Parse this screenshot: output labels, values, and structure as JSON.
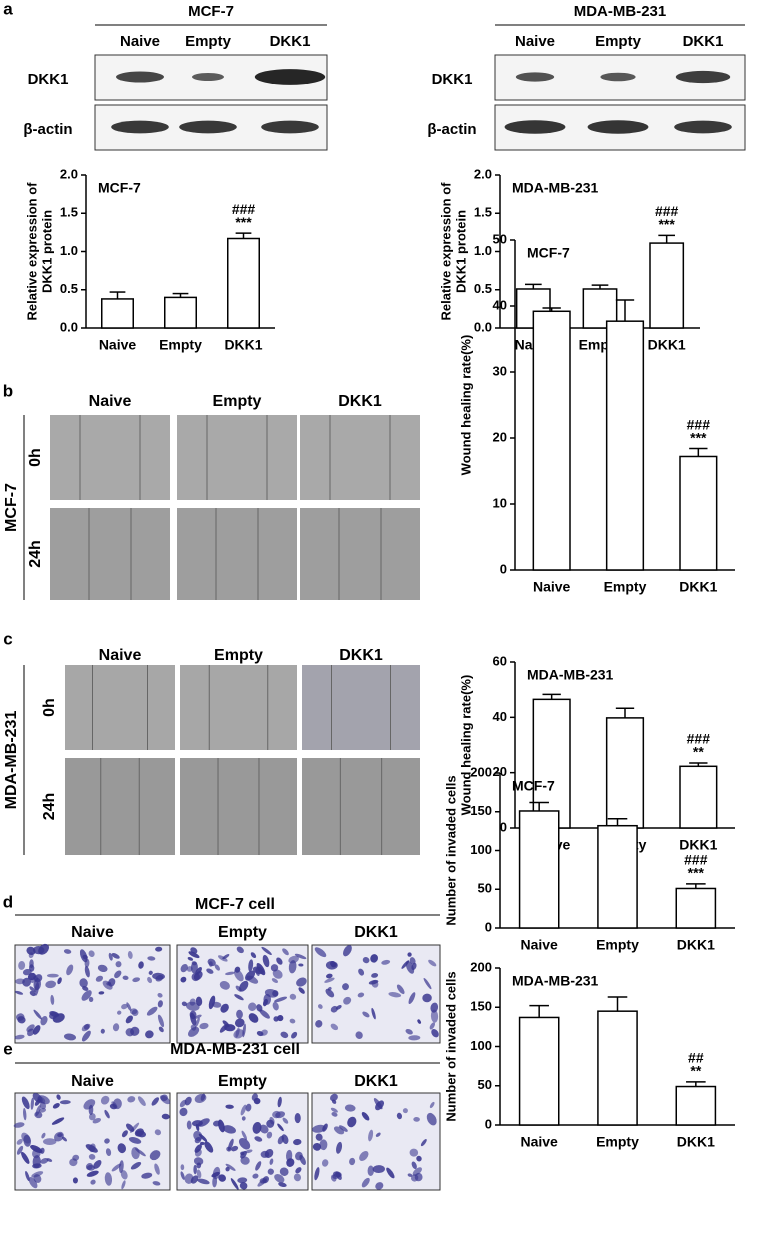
{
  "chart_data": [
    {
      "type": "bar",
      "title": "MCF-7",
      "ylabel": [
        "Relative expression of",
        "DKK1 protein"
      ],
      "categories": [
        "Naive",
        "Empty",
        "DKK1"
      ],
      "values": [
        0.38,
        0.4,
        1.17
      ],
      "errors": [
        0.09,
        0.05,
        0.07
      ],
      "annotations": [
        "###",
        "***"
      ],
      "ylim": [
        0,
        2
      ],
      "yticks": [
        {
          "value": 0,
          "label": "0.0"
        },
        {
          "value": 0.5,
          "label": "0.5"
        },
        {
          "value": 1,
          "label": "1.0"
        },
        {
          "value": 1.5,
          "label": "1.5"
        },
        {
          "value": 2,
          "label": "2.0"
        }
      ],
      "color": "#ffffff"
    },
    {
      "type": "bar",
      "title": "MDA-MB-231",
      "ylabel": [
        "Relative expression of",
        "DKK1 protein"
      ],
      "categories": [
        "Naive",
        "Empty",
        "DKK1"
      ],
      "values": [
        0.51,
        0.51,
        1.11
      ],
      "errors": [
        0.06,
        0.05,
        0.1
      ],
      "annotations": [
        "###",
        "***"
      ],
      "ylim": [
        0,
        2
      ],
      "yticks": [
        {
          "value": 0,
          "label": "0.0"
        },
        {
          "value": 0.5,
          "label": "0.5"
        },
        {
          "value": 1,
          "label": "1.0"
        },
        {
          "value": 1.5,
          "label": "1.5"
        },
        {
          "value": 2,
          "label": "2.0"
        }
      ],
      "color": "#ffffff"
    },
    {
      "type": "bar",
      "title": "MCF-7",
      "ylabel": [
        "Wound healing rate(%)"
      ],
      "categories": [
        "Naive",
        "Empty",
        "DKK1"
      ],
      "values": [
        39.2,
        37.7,
        17.2
      ],
      "errors": [
        0.5,
        3.2,
        1.2
      ],
      "annotations": [
        "###",
        "***"
      ],
      "ylim": [
        0,
        50
      ],
      "yticks": [
        0,
        10,
        20,
        30,
        40,
        50
      ],
      "color": "#ffffff"
    },
    {
      "type": "bar",
      "title": "MDA-MB-231",
      "ylabel": [
        "Wound healing rate(%)"
      ],
      "categories": [
        "Naive",
        "Empty",
        "DKK1"
      ],
      "values": [
        46.5,
        39.8,
        22.3
      ],
      "errors": [
        1.8,
        3.5,
        1.2
      ],
      "annotations": [
        "###",
        "**"
      ],
      "ylim": [
        0,
        60
      ],
      "yticks": [
        0,
        20,
        40,
        60
      ],
      "color": "#ffffff"
    },
    {
      "type": "bar",
      "title": "MCF-7",
      "ylabel": [
        "Number of invaded cells"
      ],
      "categories": [
        "Naive",
        "Empty",
        "DKK1"
      ],
      "values": [
        151,
        132,
        51
      ],
      "errors": [
        11,
        9,
        6
      ],
      "annotations": [
        "###",
        "***"
      ],
      "ylim": [
        0,
        200
      ],
      "yticks": [
        0,
        50,
        100,
        150,
        200
      ],
      "color": "#ffffff"
    },
    {
      "type": "bar",
      "title": "MDA-MB-231",
      "ylabel": [
        "Number of invaded cells"
      ],
      "categories": [
        "Naive",
        "Empty",
        "DKK1"
      ],
      "values": [
        137,
        145,
        49
      ],
      "errors": [
        15,
        18,
        6
      ],
      "annotations": [
        "##",
        "**"
      ],
      "ylim": [
        0,
        200
      ],
      "yticks": [
        0,
        50,
        100,
        150,
        200
      ],
      "color": "#ffffff"
    }
  ],
  "figure": {
    "panel_labels": [
      "a",
      "b",
      "c",
      "d",
      "e"
    ],
    "blots": [
      {
        "title": "MCF-7",
        "columns": [
          "Naive",
          "Empty",
          "DKK1"
        ],
        "rows": [
          "DKK1",
          "β-actin"
        ]
      },
      {
        "title": "MDA-MB-231",
        "columns": [
          "Naive",
          "Empty",
          "DKK1"
        ],
        "rows": [
          "DKK1",
          "β-actin"
        ]
      }
    ],
    "wound": [
      {
        "side_label": "MCF-7",
        "columns": [
          "Naive",
          "Empty",
          "DKK1"
        ],
        "rows": [
          "0h",
          "24h"
        ]
      },
      {
        "side_label": "MDA-MB-231",
        "columns": [
          "Naive",
          "Empty",
          "DKK1"
        ],
        "rows": [
          "0h",
          "24h"
        ]
      }
    ],
    "transwell": [
      {
        "title": "MCF-7 cell",
        "columns": [
          "Naive",
          "Empty",
          "DKK1"
        ]
      },
      {
        "title": "MDA-MB-231 cell",
        "columns": [
          "Naive",
          "Empty",
          "DKK1"
        ]
      }
    ]
  }
}
